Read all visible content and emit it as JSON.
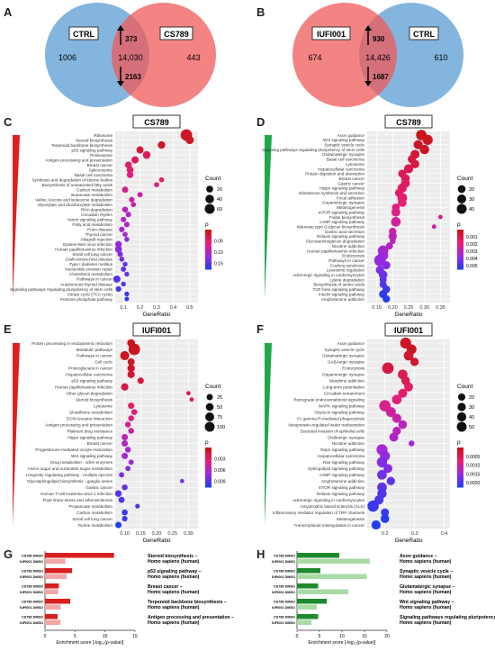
{
  "panels": {
    "A": {
      "label": "A",
      "left_set": "CTRL",
      "right_set": "CS789",
      "left_only": "1006",
      "overlap": "14,030",
      "right_only": "443",
      "up": "373",
      "down": "2163"
    },
    "B": {
      "label": "B",
      "left_set": "IUFI001",
      "right_set": "CTRL",
      "left_only": "674",
      "overlap": "14,426",
      "right_only": "610",
      "up": "930",
      "down": "1687"
    },
    "C": {
      "label": "C",
      "title": "CS789",
      "xlabel": "GeneRatio",
      "xticks": [
        "0.1",
        "0.2",
        "0.3",
        "0.4",
        "0.5"
      ],
      "count_title": "Count",
      "count_ticks": [
        "20",
        "40",
        "60"
      ],
      "p_title": "p",
      "p_ticks": [
        "0.05",
        "0.10",
        "0.15"
      ],
      "terms": [
        "Ribosome",
        "Steroid biosynthesis",
        "Terpenoid backbone biosynthesis",
        "p53 signaling pathway",
        "Proteasome",
        "Antigen processing and presentation",
        "Breast cancer",
        "Spliceosome",
        "Basal cell carcinoma",
        "Synthesis and degradation of ketone bodies",
        "Biosynthesis of unsaturated fatty acids",
        "Carbon metabolism",
        "Butanoate metabolism",
        "Valine, leucine and isoleucine degradation",
        "Glyoxylate and dicarboxylate metabolism",
        "RNA degradation",
        "Circadian rhythm",
        "Notch signaling pathway",
        "Fatty acid metabolism",
        "Prion disease",
        "Thyroid cancer",
        "Allograft rejection",
        "Epstein-Barr virus infection",
        "Human papillomavirus infection",
        "Small cell lung cancer",
        "Graft-versus-host disease",
        "Type I diabetes mellitus",
        "Nucleotide excision repair",
        "Cholesterol metabolism",
        "Pathways in cancer",
        "Autoimmune thyroid disease",
        "Signaling pathways regulating pluripotency of stem cells",
        "Citrate cycle (TCA cycle)",
        "Pentose phosphate pathway"
      ]
    },
    "D": {
      "label": "D",
      "title": "CS789",
      "xlabel": "GeneRatio",
      "xticks": [
        "0.15",
        "0.20",
        "0.25",
        "0.30",
        "0.35"
      ],
      "count_title": "Count",
      "count_ticks": [
        "20",
        "30",
        "40"
      ],
      "p_title": "p",
      "p_ticks": [
        "0.001",
        "0.002",
        "0.003",
        "0.004",
        "0.005"
      ],
      "terms": [
        "Axon guidance",
        "Wnt signaling pathway",
        "Synaptic vesicle cycle",
        "Signaling pathways regulating pluripotency of stem cells",
        "Glutamatergic synapse",
        "Basal cell carcinoma",
        "Lysosome",
        "Hepatocellular carcinoma",
        "Protein digestion and absorption",
        "Breast cancer",
        "Gastric cancer",
        "Hippo signaling pathway",
        "Aldosterone synthesis and secretion",
        "Focal adhesion",
        "Dopaminergic synapse",
        "Melanogenesis",
        "mTOR signaling pathway",
        "Folate biosynthesis",
        "cAMP signaling pathway",
        "Mannose type O-glycan biosynthesis",
        "Gastric acid secretion",
        "Relaxin signaling pathway",
        "Glycosaminoglycan degradation",
        "Nicotine addiction",
        "Human papillomavirus infection",
        "Endocytosis",
        "Pathways in cancer",
        "Cushing syndrome",
        "Lysosome regulation",
        "Adrenergic signaling in cardiomyocytes",
        "Lysine degradation",
        "Biosynthesis of amino acids",
        "TGF-beta signaling pathway",
        "Insulin signaling pathway",
        "Amphetamine addiction"
      ]
    },
    "E": {
      "label": "E",
      "title": "IUFI001",
      "xlabel": "GeneRatio",
      "xticks": [
        "0.10",
        "0.15",
        "0.20",
        "0.25",
        "0.30"
      ],
      "count_title": "Count",
      "count_ticks": [
        "25",
        "50",
        "75",
        "100"
      ],
      "p_title": "p",
      "p_ticks": [
        "0.003",
        "0.006",
        "0.009"
      ],
      "terms": [
        "Protein processing in endoplasmic reticulum",
        "Metabolic pathways",
        "Pathways in cancer",
        "Cell cycle",
        "Proteoglycans in cancer",
        "Hepatocellular carcinoma",
        "p53 signaling pathway",
        "Human papillomavirus infection",
        "Other glycan degradation",
        "Steroid biosynthesis",
        "Lysosome",
        "Glutathione metabolism",
        "ECM-receptor interaction",
        "Antigen processing and presentation",
        "Platinum drug resistance",
        "Hippo signaling pathway",
        "Breast cancer",
        "Progesterone-mediated oocyte maturation",
        "Wnt signaling pathway",
        "Drug metabolism - other enzymes",
        "Amino sugar and nucleotide sugar metabolism",
        "Longevity regulating pathway - multiple species",
        "Glycosphingolipid biosynthesis - ganglio series",
        "Gastric cancer",
        "Human T-cell leukemia virus 1 infection",
        "Fluid shear stress and atherosclerosis",
        "Propanoate metabolism",
        "Carbon metabolism",
        "Small cell lung cancer",
        "Purine metabolism"
      ]
    },
    "F": {
      "label": "F",
      "title": "IUFI001",
      "xlabel": "GeneRatio",
      "xticks": [
        "0.2",
        "0.3",
        "0.4"
      ],
      "count_title": "Count",
      "count_ticks": [
        "20",
        "30",
        "40",
        "50"
      ],
      "p_title": "p",
      "p_ticks": [
        "0.0005",
        "0.0010",
        "0.0015",
        "0.0020"
      ],
      "terms": [
        "Axon guidance",
        "Synaptic vesicle cycle",
        "Glutamatergic synapse",
        "GABAergic synapse",
        "Endocytosis",
        "Dopaminergic synapse",
        "Morphine addiction",
        "Long-term potentiation",
        "Circadian entrainment",
        "Retrograde endocannabinoid signaling",
        "MAPK signaling pathway",
        "Oxytocin signaling pathway",
        "Fc gamma R-mediated phagocytosis",
        "Vasopressin-regulated water reabsorption",
        "Bacterial invasion of epithelial cells",
        "Cholinergic synapse",
        "Nicotine addiction",
        "Rap1 signaling pathway",
        "Hepatocellular carcinoma",
        "Ras signaling pathway",
        "Sphingolipid signaling pathway",
        "cAMP signaling pathway",
        "Amphetamine addiction",
        "mTOR signaling pathway",
        "Relaxin signaling pathway",
        "Adrenergic signaling in cardiomyocytes",
        "Amyotrophic lateral sclerosis (ALS)",
        "Inflammatory mediator regulation of TRP channels",
        "Melanogenesis",
        "Transcriptional misregulation in cancer"
      ]
    },
    "G": {
      "label": "G",
      "xlabel": "Enrichment score [-log₁₀(p-value)]",
      "xticks": [
        "0",
        "5",
        "10",
        "15"
      ],
      "rowlabels": [
        "CS789 DMSO",
        "IUFI001 DMSO"
      ],
      "terms": [
        "Steroid biosynthesis – Homo sapiens (human)",
        "p53 signaling pathway – Homo sapiens (human)",
        "Breast cancer – Homo sapiens (human)",
        "Terpenoid backbone biosynthesis – Homo sapiens (human)",
        "Antigen processing and presentation – Homo sapiens (human)"
      ]
    },
    "H": {
      "label": "H",
      "xlabel": "Enrichment score [-log₁₀(p-value)]",
      "xticks": [
        "0",
        "5",
        "10",
        "15",
        "20"
      ],
      "rowlabels": [
        "CS789 DMSO",
        "IUFI001 DMSO"
      ],
      "terms": [
        "Axon guidance – Homo sapiens (human)",
        "Synaptic vesicle cycle – Homo sapiens (human)",
        "Glutamatergic synapse – Homo sapiens (human)",
        "Wnt signaling pathway – Homo sapiens (human)",
        "Signaling pathways regulating pluripotency of stem cells – Homo sapiens (human)"
      ]
    }
  },
  "chart_data": [
    {
      "type": "scatter",
      "panel": "C",
      "title": "CS789",
      "xlabel": "GeneRatio",
      "xlim": [
        0.05,
        0.55
      ],
      "x": [
        0.48,
        0.5,
        0.33,
        0.2,
        0.24,
        0.17,
        0.13,
        0.14,
        0.14,
        0.33,
        0.3,
        0.11,
        0.2,
        0.15,
        0.16,
        0.11,
        0.13,
        0.1,
        0.12,
        0.09,
        0.11,
        0.12,
        0.07,
        0.07,
        0.08,
        0.09,
        0.11,
        0.1,
        0.12,
        0.06,
        0.1,
        0.07,
        0.12,
        0.12
      ],
      "count": [
        62,
        25,
        20,
        18,
        22,
        18,
        15,
        16,
        14,
        6,
        6,
        12,
        7,
        8,
        6,
        10,
        8,
        8,
        8,
        8,
        6,
        6,
        14,
        16,
        8,
        6,
        5,
        7,
        5,
        18,
        5,
        8,
        5,
        4
      ],
      "p": [
        0.01,
        0.01,
        0.01,
        0.02,
        0.04,
        0.04,
        0.05,
        0.05,
        0.06,
        0.05,
        0.06,
        0.07,
        0.08,
        0.08,
        0.08,
        0.09,
        0.1,
        0.1,
        0.1,
        0.11,
        0.11,
        0.12,
        0.12,
        0.12,
        0.13,
        0.13,
        0.14,
        0.14,
        0.14,
        0.15,
        0.15,
        0.16,
        0.16,
        0.17
      ]
    },
    {
      "type": "scatter",
      "panel": "D",
      "title": "CS789",
      "xlabel": "GeneRatio",
      "xlim": [
        0.12,
        0.38
      ],
      "x": [
        0.29,
        0.31,
        0.28,
        0.3,
        0.27,
        0.26,
        0.27,
        0.25,
        0.23,
        0.24,
        0.24,
        0.23,
        0.22,
        0.23,
        0.23,
        0.21,
        0.21,
        0.35,
        0.21,
        0.33,
        0.2,
        0.2,
        0.2,
        0.19,
        0.17,
        0.17,
        0.16,
        0.18,
        0.16,
        0.17,
        0.17,
        0.17,
        0.18,
        0.17,
        0.18
      ],
      "count": [
        40,
        36,
        28,
        30,
        26,
        20,
        24,
        28,
        20,
        24,
        26,
        28,
        20,
        32,
        24,
        18,
        26,
        3,
        32,
        3,
        16,
        22,
        8,
        14,
        40,
        36,
        50,
        20,
        22,
        24,
        14,
        14,
        18,
        20,
        16
      ],
      "p": [
        0.0001,
        0.0002,
        0.0003,
        0.0003,
        0.0005,
        0.0007,
        0.0008,
        0.001,
        0.0011,
        0.0012,
        0.0013,
        0.0014,
        0.0015,
        0.0016,
        0.0017,
        0.0018,
        0.002,
        0.0022,
        0.0023,
        0.0024,
        0.0025,
        0.0027,
        0.0028,
        0.003,
        0.0032,
        0.0034,
        0.0036,
        0.0038,
        0.004,
        0.0042,
        0.0044,
        0.0046,
        0.0048,
        0.005,
        0.0052
      ]
    },
    {
      "type": "scatter",
      "panel": "E",
      "title": "IUFI001",
      "xlabel": "GeneRatio",
      "xlim": [
        0.07,
        0.33
      ],
      "x": [
        0.12,
        0.13,
        0.1,
        0.12,
        0.12,
        0.12,
        0.15,
        0.1,
        0.3,
        0.31,
        0.12,
        0.13,
        0.12,
        0.11,
        0.12,
        0.1,
        0.1,
        0.11,
        0.1,
        0.12,
        0.11,
        0.09,
        0.28,
        0.1,
        0.08,
        0.09,
        0.14,
        0.1,
        0.1,
        0.08
      ],
      "count": [
        40,
        110,
        60,
        30,
        35,
        34,
        22,
        34,
        6,
        6,
        22,
        18,
        18,
        17,
        17,
        22,
        22,
        18,
        22,
        12,
        12,
        12,
        5,
        17,
        26,
        20,
        8,
        18,
        14,
        22
      ],
      "p": [
        0.0002,
        0.0003,
        0.0004,
        0.0005,
        0.0006,
        0.001,
        0.0012,
        0.0015,
        0.002,
        0.0022,
        0.0025,
        0.003,
        0.0035,
        0.004,
        0.0045,
        0.005,
        0.0055,
        0.006,
        0.0062,
        0.0065,
        0.007,
        0.0072,
        0.0075,
        0.008,
        0.0082,
        0.0085,
        0.0088,
        0.009,
        0.0092,
        0.0095
      ]
    },
    {
      "type": "scatter",
      "panel": "F",
      "title": "IUFI001",
      "xlabel": "GeneRatio",
      "xlim": [
        0.14,
        0.42
      ],
      "x": [
        0.27,
        0.29,
        0.28,
        0.3,
        0.21,
        0.26,
        0.27,
        0.28,
        0.26,
        0.24,
        0.2,
        0.22,
        0.24,
        0.26,
        0.24,
        0.23,
        0.29,
        0.19,
        0.2,
        0.19,
        0.21,
        0.19,
        0.22,
        0.19,
        0.19,
        0.18,
        0.16,
        0.2,
        0.2,
        0.17
      ],
      "count": [
        45,
        34,
        33,
        22,
        50,
        32,
        24,
        26,
        26,
        32,
        48,
        34,
        28,
        24,
        22,
        26,
        8,
        44,
        34,
        38,
        26,
        32,
        22,
        32,
        30,
        28,
        48,
        20,
        24,
        28
      ],
      "p": [
        0.0001,
        0.0001,
        0.0002,
        0.0002,
        0.0003,
        0.0004,
        0.0004,
        0.0005,
        0.0006,
        0.0007,
        0.0008,
        0.0009,
        0.001,
        0.0011,
        0.0011,
        0.0012,
        0.0013,
        0.0013,
        0.0014,
        0.0015,
        0.0015,
        0.0016,
        0.0017,
        0.0017,
        0.0018,
        0.0018,
        0.0019,
        0.0019,
        0.002,
        0.002
      ]
    },
    {
      "type": "bar",
      "panel": "G",
      "orientation": "horizontal",
      "xlabel": "Enrichment score [-log₁₀(p-value)]",
      "xlim": [
        0,
        15
      ],
      "categories": [
        "Steroid biosynthesis",
        "p53 signaling pathway",
        "Breast cancer",
        "Terpenoid backbone biosynthesis",
        "Antigen processing and presentation"
      ],
      "series": [
        {
          "name": "CS789 DMSO",
          "values": [
            11.5,
            4.5,
            2.3,
            4.2,
            2.1
          ]
        },
        {
          "name": "IUFI001 DMSO",
          "values": [
            3.4,
            3.6,
            2.2,
            2.6,
            2.6
          ]
        }
      ]
    },
    {
      "type": "bar",
      "panel": "H",
      "orientation": "horizontal",
      "xlabel": "Enrichment score [-log₁₀(p-value)]",
      "xlim": [
        0,
        20
      ],
      "categories": [
        "Axon guidance",
        "Synaptic vesicle cycle",
        "Glutamatergic synapse",
        "Wnt signaling pathway",
        "Signaling pathways regulating pluripotency of stem cells"
      ],
      "series": [
        {
          "name": "CS789 DMSO",
          "values": [
            9.4,
            5.2,
            4.7,
            6.6,
            4.7
          ]
        },
        {
          "name": "IUFI001 DMSO",
          "values": [
            16.2,
            15.5,
            11.4,
            4.4,
            3.2
          ]
        }
      ]
    }
  ]
}
